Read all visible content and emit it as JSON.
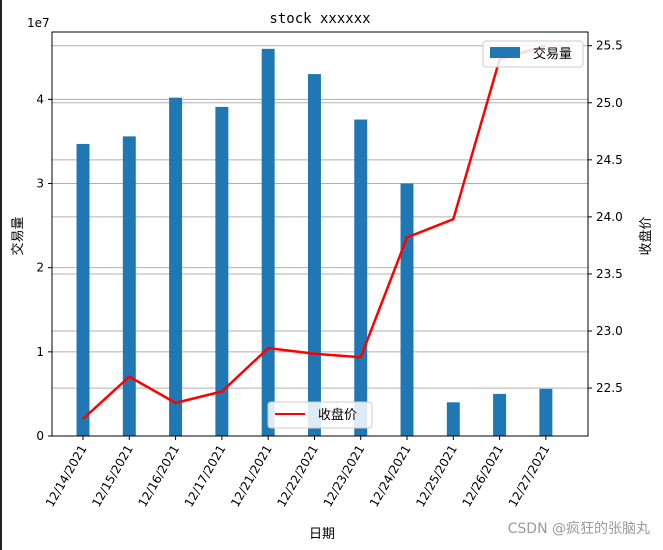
{
  "chart_data": {
    "type": "bar+line",
    "title": "stock xxxxxx",
    "xlabel": "日期",
    "categories": [
      "12/14/2021",
      "12/15/2021",
      "12/16/2021",
      "12/17/2021",
      "12/21/2021",
      "12/22/2021",
      "12/23/2021",
      "12/24/2021",
      "12/25/2021",
      "12/26/2021",
      "12/27/2021"
    ],
    "left_axis": {
      "label": "交易量",
      "offset_label": "1e7",
      "ticks": [
        0,
        1,
        2,
        3,
        4
      ],
      "ylim": [
        0,
        4.8
      ]
    },
    "right_axis": {
      "label": "收盘价",
      "ticks": [
        22.5,
        23.0,
        23.5,
        24.0,
        24.5,
        25.0,
        25.5
      ],
      "ylim": [
        22.08,
        25.62
      ]
    },
    "series": [
      {
        "name": "交易量",
        "kind": "bar",
        "axis": "left",
        "color": "#1f77b4",
        "values": [
          3.47,
          3.56,
          4.02,
          3.91,
          4.6,
          4.3,
          3.76,
          3.0,
          0.4,
          0.5,
          0.56
        ]
      },
      {
        "name": "收盘价",
        "kind": "line",
        "axis": "right",
        "color": "#ff0000",
        "values": [
          22.23,
          22.6,
          22.37,
          22.47,
          22.85,
          22.8,
          22.77,
          23.82,
          23.98,
          25.38,
          25.5
        ]
      }
    ],
    "grid": true,
    "legends": [
      {
        "series": "交易量",
        "placement": "top-right"
      },
      {
        "series": "收盘价",
        "placement": "bottom-center"
      }
    ]
  },
  "watermark": "CSDN @疯狂的张脑丸"
}
